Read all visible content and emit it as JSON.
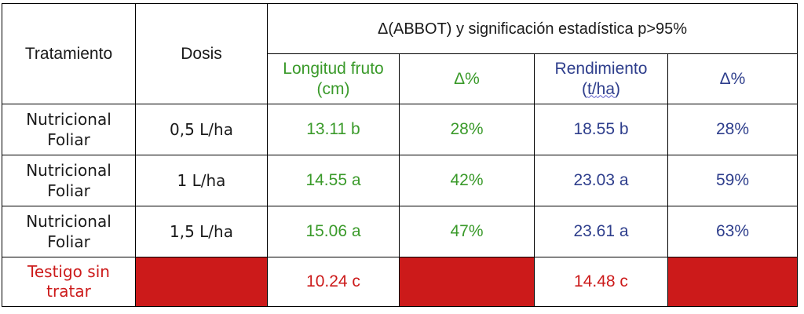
{
  "table": {
    "header": {
      "treatment": "Tratamiento",
      "dose": "Dosis",
      "group": "Δ(ABBOT) y significación estadística p>95%",
      "length_line1": "Longitud fruto",
      "length_line2": "(cm)",
      "delta1": "Δ%",
      "yield_line1": "Rendimiento",
      "yield_prefix": "(",
      "yield_unit_a": "t/",
      "yield_unit_b": "ha",
      "yield_suffix": ")",
      "delta2": "Δ%"
    },
    "rows": [
      {
        "treatment_line1": "Nutricional",
        "treatment_line2": "Foliar",
        "dose": "0,5 L/ha",
        "length": "13.11 b",
        "length_delta": "28%",
        "yield": "18.55 b",
        "yield_delta": "28%"
      },
      {
        "treatment_line1": "Nutricional",
        "treatment_line2": "Foliar",
        "dose": "1 L/ha",
        "length": "14.55 a",
        "length_delta": "42%",
        "yield": "23.03 a",
        "yield_delta": "59%"
      },
      {
        "treatment_line1": "Nutricional",
        "treatment_line2": "Foliar",
        "dose": "1,5 L/ha",
        "length": "15.06 a",
        "length_delta": "47%",
        "yield": "23.61 a",
        "yield_delta": "63%"
      }
    ],
    "control": {
      "treatment_line1": "Testigo sin",
      "treatment_line2": "tratar",
      "length": "10.24 c",
      "yield": "14.48 c"
    }
  },
  "colors": {
    "green": "#3a9a2a",
    "blue": "#2e3e8c",
    "red": "#cc1a1a",
    "border": "#000000"
  }
}
